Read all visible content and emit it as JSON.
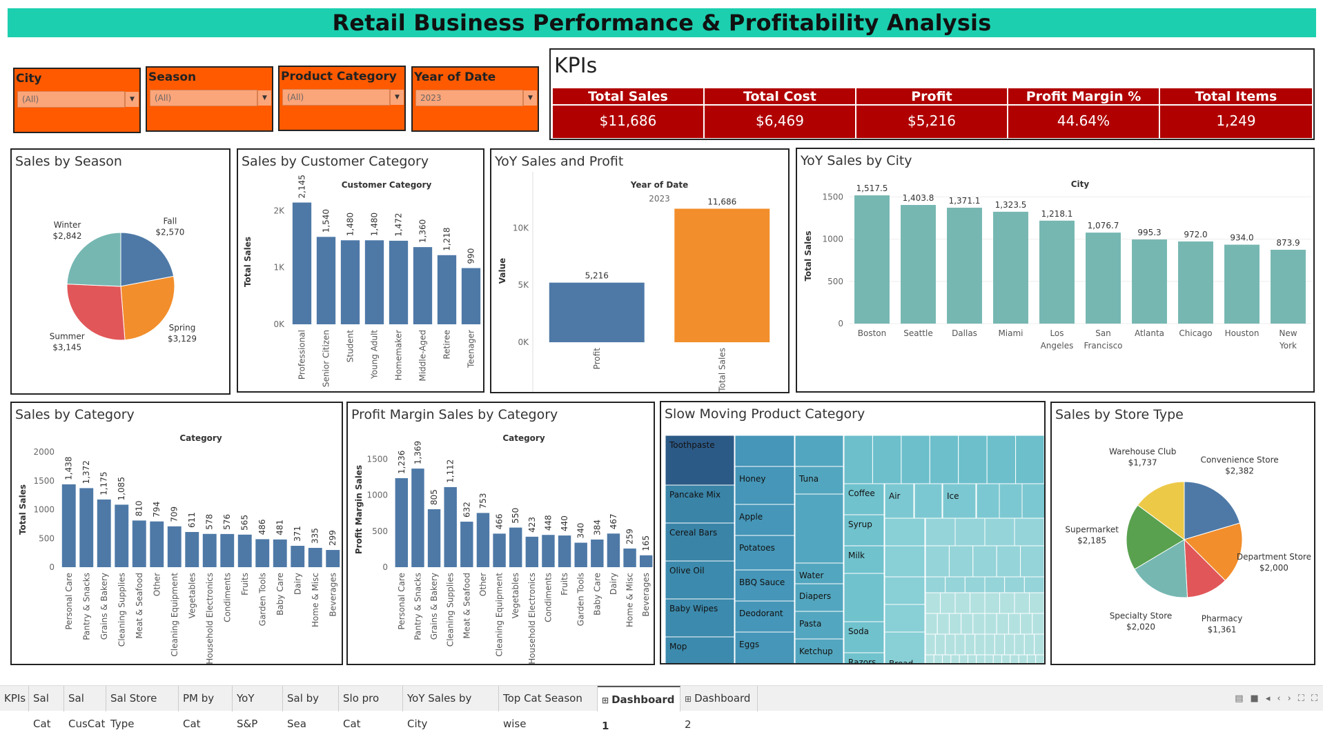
{
  "title": "Retail Business Performance & Profitability Analysis",
  "filters": [
    {
      "label": "City",
      "value": "(All)"
    },
    {
      "label": "Season",
      "value": "(All)"
    },
    {
      "label": "Product Category",
      "value": "(All)"
    },
    {
      "label": "Year of Date",
      "value": "2023"
    }
  ],
  "kpis": {
    "title": "KPIs",
    "items": [
      {
        "label": "Total Sales",
        "value": "$11,686"
      },
      {
        "label": "Total Cost",
        "value": "$6,469"
      },
      {
        "label": "Profit",
        "value": "$5,216"
      },
      {
        "label": "Profit Margin %",
        "value": "44.64%"
      },
      {
        "label": "Total Items",
        "value": "1,249"
      }
    ]
  },
  "panels": {
    "season": "Sales by Season",
    "cuscat": "Sales by Customer Category",
    "yoy": "YoY Sales and Profit",
    "city": "YoY Sales by City",
    "category": "Sales by Category",
    "pm": "Profit Margin Sales by Category",
    "slow": "Slow Moving Product Category",
    "store": "Sales by Store Type"
  },
  "colors": {
    "accent": "#1ccfaf",
    "filter": "#ff5a00",
    "kpi": "#b00000",
    "bar_blue": "#4e79a7",
    "bar_teal": "#76b7b2",
    "bar_orange": "#f28e2b"
  },
  "chart_data": [
    {
      "id": "season",
      "type": "pie",
      "categories": [
        "Fall",
        "Spring",
        "Summer",
        "Winter"
      ],
      "values": [
        2570,
        3129,
        3145,
        2842
      ],
      "value_labels": [
        "$2,570",
        "$3,129",
        "$3,145",
        "$2,842"
      ],
      "colors": [
        "#4e79a7",
        "#f28e2b",
        "#e15759",
        "#76b7b2"
      ]
    },
    {
      "id": "cuscat",
      "type": "bar",
      "column_header": "Customer Category",
      "ylabel": "Total Sales",
      "categories": [
        "Professional",
        "Senior Citizen",
        "Student",
        "Young Adult",
        "Homemaker",
        "Middle-Aged",
        "Retiree",
        "Teenager"
      ],
      "values": [
        2145,
        1540,
        1480,
        1480,
        1472,
        1360,
        1218,
        990
      ],
      "value_labels": [
        "2,145",
        "1,540",
        "1,480",
        "1,480",
        "1,472",
        "1,360",
        "1,218",
        "990"
      ],
      "yticks": [
        "0K",
        "1K",
        "2K"
      ],
      "ylim": [
        0,
        2200
      ]
    },
    {
      "id": "yoy",
      "type": "bar",
      "column_header": "Year of Date",
      "column_value": "2023",
      "ylabel": "Value",
      "categories": [
        "Profit",
        "Total Sales"
      ],
      "values": [
        5216,
        11686
      ],
      "value_labels": [
        "5,216",
        "11,686"
      ],
      "yticks": [
        "0K",
        "5K",
        "10K"
      ],
      "ylim": [
        0,
        12500
      ]
    },
    {
      "id": "city",
      "type": "bar",
      "column_header": "City",
      "ylabel": "Total Sales",
      "categories": [
        "Boston",
        "Seattle",
        "Dallas",
        "Miami",
        "Los Angeles",
        "San Francisco",
        "Atlanta",
        "Chicago",
        "Houston",
        "New York"
      ],
      "values": [
        1517.5,
        1403.8,
        1371.1,
        1323.5,
        1218.1,
        1076.7,
        995.3,
        972.0,
        934.0,
        873.9
      ],
      "value_labels": [
        "1,517.5",
        "1,403.8",
        "1,371.1",
        "1,323.5",
        "1,218.1",
        "1,076.7",
        "995.3",
        "972.0",
        "934.0",
        "873.9"
      ],
      "yticks": [
        "0",
        "500",
        "1000",
        "1500"
      ],
      "ylim": [
        0,
        1600
      ]
    },
    {
      "id": "category",
      "type": "bar",
      "column_header": "Category",
      "ylabel": "Total Sales",
      "categories": [
        "Personal Care",
        "Pantry & Snacks",
        "Grains & Bakery",
        "Cleaning Supplies",
        "Meat & Seafood",
        "Other",
        "Cleaning Equipment",
        "Vegetables",
        "Household Electronics",
        "Condiments",
        "Fruits",
        "Garden Tools",
        "Baby Care",
        "Dairy",
        "Home & Misc",
        "Beverages"
      ],
      "values": [
        1438,
        1372,
        1175,
        1085,
        810,
        794,
        709,
        611,
        578,
        576,
        565,
        486,
        481,
        371,
        335,
        299
      ],
      "value_labels": [
        "1,438",
        "1,372",
        "1,175",
        "1,085",
        "810",
        "794",
        "709",
        "611",
        "578",
        "576",
        "565",
        "486",
        "481",
        "371",
        "335",
        "299"
      ],
      "yticks": [
        "0",
        "500",
        "1000",
        "1500",
        "2000"
      ],
      "ylim": [
        0,
        2000
      ]
    },
    {
      "id": "pm",
      "type": "bar",
      "column_header": "Category",
      "ylabel": "Profit Margin Sales",
      "categories": [
        "Personal Care",
        "Pantry & Snacks",
        "Grains & Bakery",
        "Cleaning Supplies",
        "Meat & Seafood",
        "Other",
        "Cleaning Equipment",
        "Vegetables",
        "Household Electronics",
        "Condiments",
        "Fruits",
        "Garden Tools",
        "Baby Care",
        "Dairy",
        "Home & Misc",
        "Beverages"
      ],
      "values": [
        1236,
        1369,
        805,
        1112,
        632,
        753,
        466,
        550,
        423,
        448,
        440,
        340,
        384,
        467,
        259,
        165
      ],
      "value_labels": [
        "1,236",
        "1,369",
        "805",
        "1,112",
        "632",
        "753",
        "466",
        "550",
        "423",
        "448",
        "440",
        "340",
        "384",
        "467",
        "259",
        "165"
      ],
      "yticks": [
        "0",
        "500",
        "1000",
        "1500"
      ],
      "ylim": [
        0,
        1600
      ]
    },
    {
      "id": "slow",
      "type": "treemap",
      "labels": [
        "Toothpaste",
        "Pancake Mix",
        "Cereal Bars",
        "Olive Oil",
        "Baby Wipes",
        "Mop",
        "Honey",
        "Apple",
        "Potatoes",
        "BBQ Sauce",
        "Deodorant",
        "Eggs",
        "Tuna",
        "Water",
        "Diapers",
        "Pasta",
        "Ketchup",
        "Coffee",
        "Syrup",
        "Milk",
        "Soda",
        "Razors",
        "Air",
        "Ice",
        "Bread"
      ]
    },
    {
      "id": "store",
      "type": "pie",
      "categories": [
        "Convenience Store",
        "Department Store",
        "Pharmacy",
        "Specialty Store",
        "Supermarket",
        "Warehouse Club"
      ],
      "values": [
        2382,
        2000,
        1361,
        2020,
        2185,
        1737
      ],
      "value_labels": [
        "$2,382",
        "$2,000",
        "$1,361",
        "$2,020",
        "$2,185",
        "$1,737"
      ],
      "colors": [
        "#4e79a7",
        "#f28e2b",
        "#e15759",
        "#76b7b2",
        "#59a14f",
        "#edc948"
      ]
    }
  ],
  "tabs": [
    {
      "label": "KPIs"
    },
    {
      "label": "Sal Cat"
    },
    {
      "label": "Sal CusCat"
    },
    {
      "label": "Sal Store Type"
    },
    {
      "label": "PM by Cat"
    },
    {
      "label": "YoY S&P"
    },
    {
      "label": "Sal by Sea"
    },
    {
      "label": "Slo pro Cat"
    },
    {
      "label": "YoY Sales by City"
    },
    {
      "label": "Top Cat Season wise"
    },
    {
      "label": "Dashboard 1",
      "active": true,
      "icon": "dashboard-icon"
    },
    {
      "label": "Dashboard 2",
      "icon": "dashboard-icon"
    }
  ]
}
